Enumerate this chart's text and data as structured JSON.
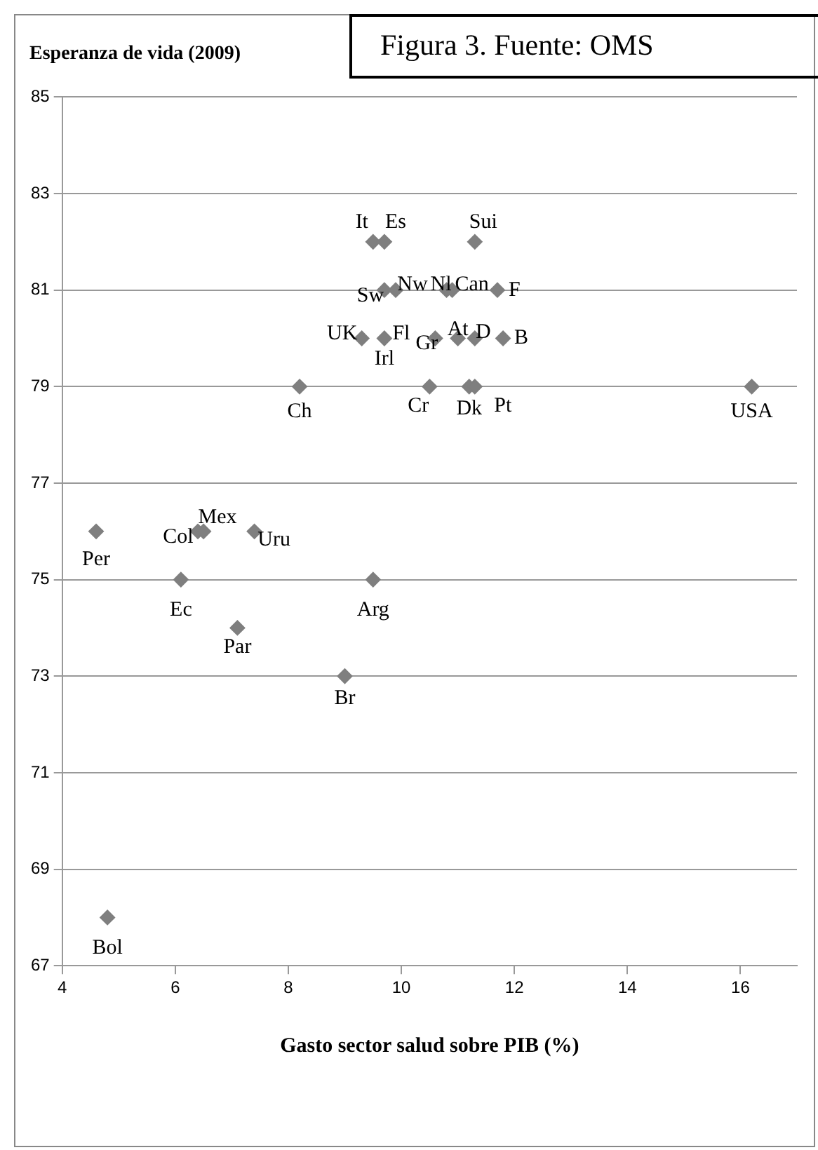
{
  "chart_data": {
    "type": "scatter",
    "ylabel": "Esperanza de vida (2009)",
    "xlabel": "Gasto sector salud sobre PIB (%)",
    "x": [
      9.5,
      9.7,
      11.3,
      9.7,
      9.9,
      10.8,
      10.9,
      11.7,
      9.3,
      9.7,
      null,
      10.6,
      11.0,
      11.3,
      11.8,
      8.2,
      10.5,
      11.2,
      11.3,
      16.2,
      4.6,
      6.4,
      6.5,
      7.4,
      6.1,
      9.5,
      7.1,
      9.0,
      4.8
    ],
    "values": [
      82,
      82,
      82,
      81,
      81,
      81,
      81,
      81,
      80,
      80,
      null,
      80,
      80,
      80,
      80,
      79,
      79,
      79,
      79,
      79,
      76,
      76,
      76,
      76,
      75,
      75,
      74,
      73,
      68
    ],
    "color": "#7f7f7f",
    "marker": "diamond",
    "xlim": [
      4,
      17
    ],
    "xticks": [
      4,
      6,
      8,
      10,
      12,
      14,
      16
    ],
    "ylim": [
      67,
      85
    ],
    "yticks": [
      67,
      69,
      71,
      73,
      75,
      77,
      79,
      81,
      83,
      85
    ],
    "grid": "y",
    "annotations": [
      "Figura 3. Fuente: OMS",
      {
        "text": "It",
        "x": 9.5,
        "y": 82
      },
      {
        "text": "Es",
        "x": 9.7,
        "y": 82
      },
      {
        "text": "Sui",
        "x": 11.3,
        "y": 82
      },
      {
        "text": "Sw",
        "x": 9.7,
        "y": 81
      },
      {
        "text": "Nw",
        "x": 9.9,
        "y": 81
      },
      {
        "text": "Nl",
        "x": 10.8,
        "y": 81
      },
      {
        "text": "Can",
        "x": 10.9,
        "y": 81
      },
      {
        "text": "F",
        "x": 11.7,
        "y": 81
      },
      {
        "text": "UK",
        "x": 9.3,
        "y": 80
      },
      {
        "text": "Fl",
        "x": 9.7,
        "y": 80
      },
      {
        "text": "Irl",
        "x": 9.7,
        "y": 80
      },
      {
        "text": "Gr",
        "x": 10.6,
        "y": 80
      },
      {
        "text": "At",
        "x": 11.0,
        "y": 80
      },
      {
        "text": "D",
        "x": 11.3,
        "y": 80
      },
      {
        "text": "B",
        "x": 11.8,
        "y": 80
      },
      {
        "text": "Ch",
        "x": 8.2,
        "y": 79
      },
      {
        "text": "Cr",
        "x": 10.5,
        "y": 79
      },
      {
        "text": "Dk",
        "x": 11.2,
        "y": 79
      },
      {
        "text": "Pt",
        "x": 11.3,
        "y": 79
      },
      {
        "text": "USA",
        "x": 16.2,
        "y": 79
      },
      {
        "text": "Per",
        "x": 4.6,
        "y": 76
      },
      {
        "text": "Col",
        "x": 6.4,
        "y": 76
      },
      {
        "text": "Mex",
        "x": 6.5,
        "y": 76
      },
      {
        "text": "Uru",
        "x": 7.4,
        "y": 76
      },
      {
        "text": "Ec",
        "x": 6.1,
        "y": 75
      },
      {
        "text": "Arg",
        "x": 9.5,
        "y": 75
      },
      {
        "text": "Par",
        "x": 7.1,
        "y": 74
      },
      {
        "text": "Br",
        "x": 9.0,
        "y": 73
      },
      {
        "text": "Bol",
        "x": 4.8,
        "y": 68
      }
    ]
  }
}
